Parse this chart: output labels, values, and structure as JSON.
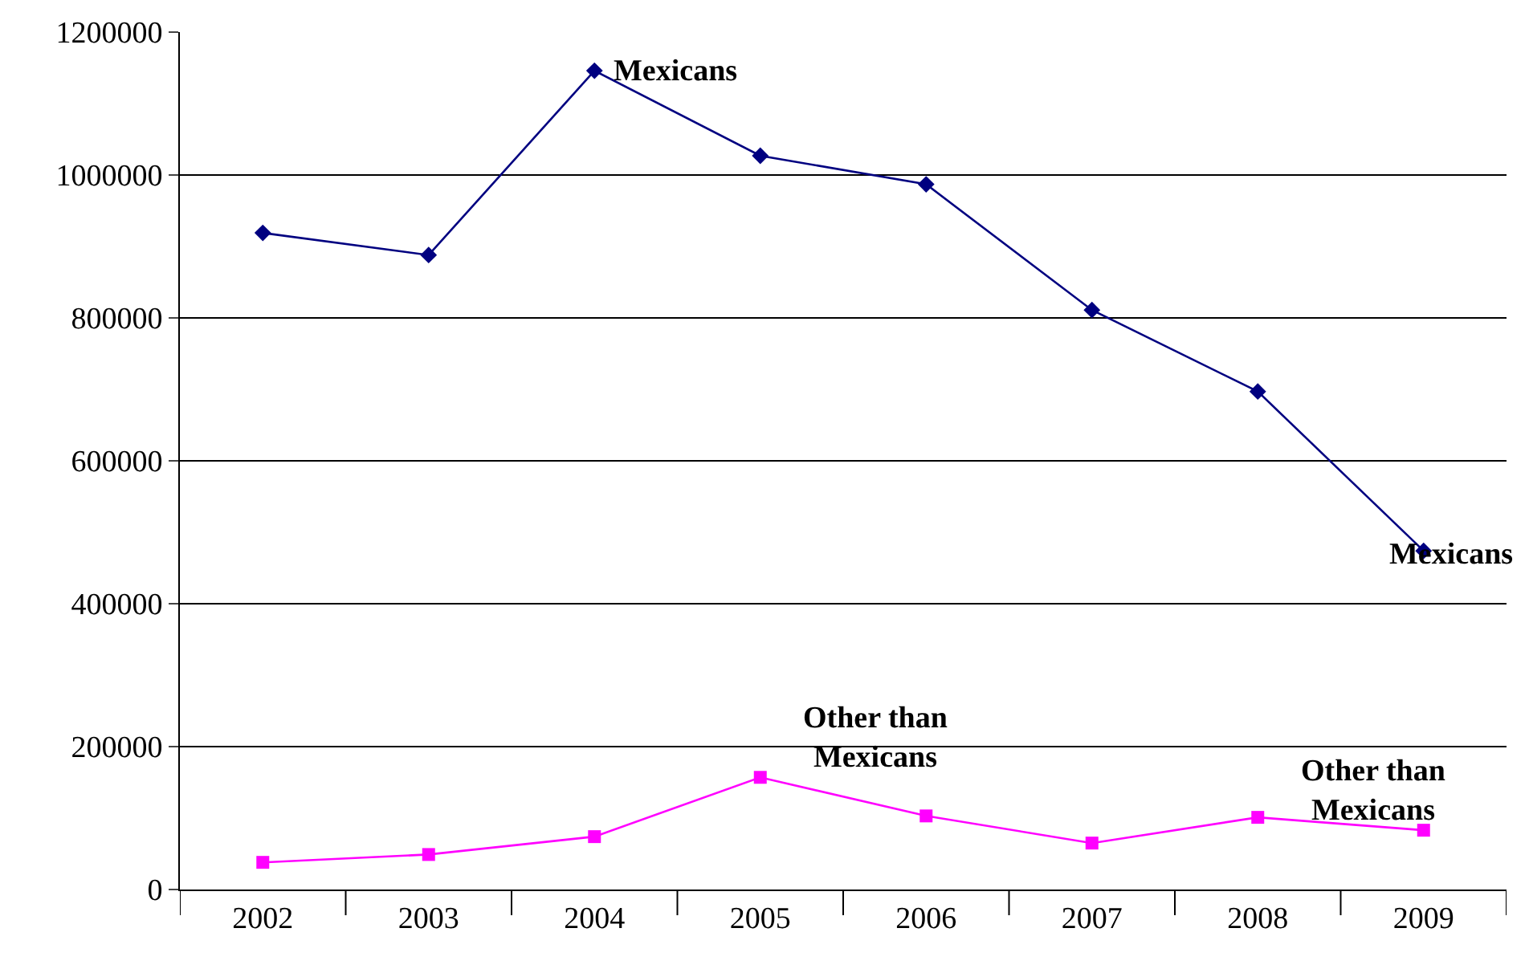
{
  "chart_data": {
    "type": "line",
    "categories": [
      "2002",
      "2003",
      "2004",
      "2005",
      "2006",
      "2007",
      "2008",
      "2009"
    ],
    "series": [
      {
        "color": "#000080",
        "marker": "diamond",
        "values": [
          919000,
          888000,
          1146000,
          1027000,
          987000,
          811000,
          697000,
          474000
        ]
      },
      {
        "color": "#ff00ff",
        "marker": "square",
        "values": [
          38000,
          49000,
          74000,
          157000,
          103000,
          65000,
          101000,
          83000
        ]
      }
    ],
    "ylim": [
      0,
      1200000
    ],
    "yticks": [
      0,
      200000,
      400000,
      600000,
      800000,
      1000000,
      1200000
    ],
    "grid": "y",
    "annotations": [
      {
        "text": "Mexicans",
        "x": "2004",
        "y": 1146000
      },
      {
        "text": "Mexicans",
        "x": "2009",
        "y": 474000
      },
      {
        "text": "Other than\nMexicans",
        "x": "2005",
        "y": 157000
      },
      {
        "text": "Other than\nMexicans",
        "x": "2008",
        "y": 101000
      }
    ]
  }
}
